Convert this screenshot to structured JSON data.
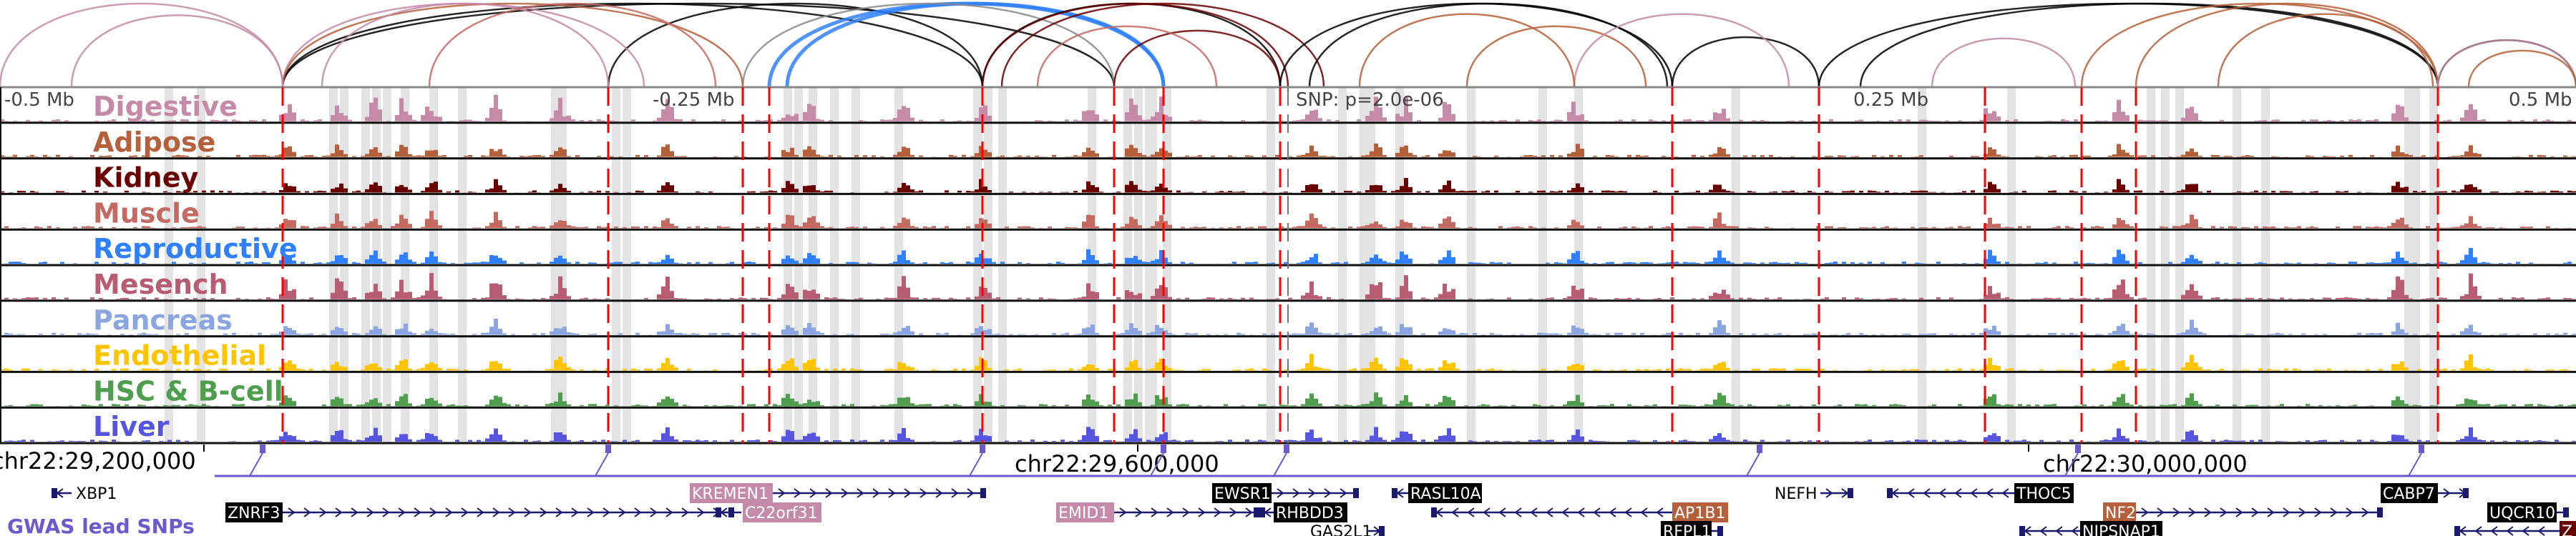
{
  "tracks": [
    {
      "label": "Digestive",
      "color": "#c58aa8"
    },
    {
      "label": "Adipose",
      "color": "#b5603a"
    },
    {
      "label": "Kidney",
      "color": "#6b0000"
    },
    {
      "label": "Muscle",
      "color": "#c46a60"
    },
    {
      "label": "Reproductive",
      "color": "#2f80ff"
    },
    {
      "label": "Mesench",
      "color": "#b85c72"
    },
    {
      "label": "Pancreas",
      "color": "#8aa5e0"
    },
    {
      "label": "Endothelial",
      "color": "#ffc400"
    },
    {
      "label": "HSC & B-cell",
      "color": "#4e9e4e"
    },
    {
      "label": "Liver",
      "color": "#5555e0"
    }
  ],
  "axis_labels": {
    "minus_half": "-0.5 Mb",
    "minus_quarter": "-0.25 Mb",
    "snp": "SNP: p=2.0e-06",
    "plus_quarter": "0.25 Mb",
    "plus_half": "0.5 Mb"
  },
  "coordinates": [
    "chr22:29,200,000",
    "chr22:29,600,000",
    "chr22:30,000,000"
  ],
  "gwas_label": "GWAS lead SNPs",
  "genes": [
    {
      "name": "XBP1",
      "style": "plain"
    },
    {
      "name": "ZNRF3",
      "style": "black"
    },
    {
      "name": "KREMEN1",
      "style": "pink"
    },
    {
      "name": "C22orf31",
      "style": "pink"
    },
    {
      "name": "EMID1",
      "style": "pink"
    },
    {
      "name": "EWSR1",
      "style": "black"
    },
    {
      "name": "RHBDD3",
      "style": "black"
    },
    {
      "name": "GAS2L1",
      "style": "plain"
    },
    {
      "name": "RASL10A",
      "style": "black"
    },
    {
      "name": "NEFH",
      "style": "plain"
    },
    {
      "name": "AP1B1",
      "style": "brown"
    },
    {
      "name": "RFPL1",
      "style": "black"
    },
    {
      "name": "THOC5",
      "style": "black"
    },
    {
      "name": "NF2",
      "style": "brown"
    },
    {
      "name": "NIPSNAP1",
      "style": "black"
    },
    {
      "name": "CABP7",
      "style": "black"
    },
    {
      "name": "UQCR10",
      "style": "black"
    },
    {
      "name": "Z",
      "style": "darkred"
    }
  ],
  "colors": {
    "gwas": "#6a5acd",
    "gene_line": "#1a1a6e",
    "snp_line": "#ff0000",
    "highlight": "#e3e3e3"
  }
}
